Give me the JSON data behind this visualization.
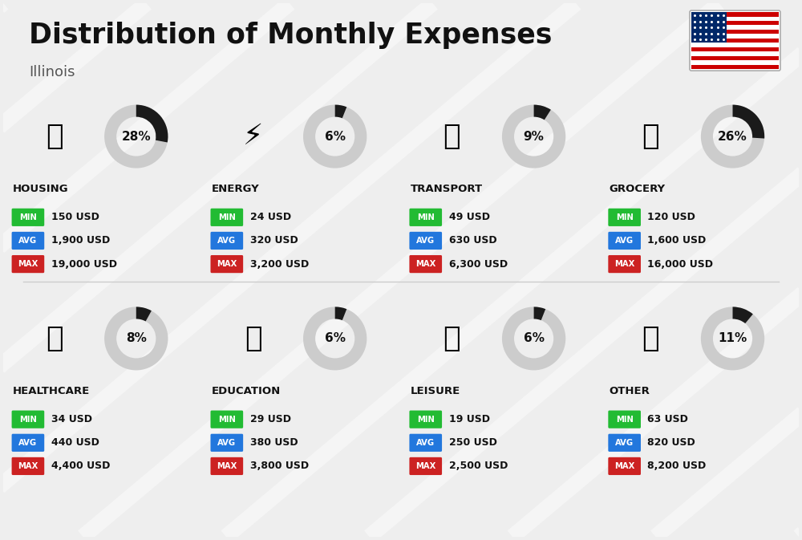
{
  "title": "Distribution of Monthly Expenses",
  "subtitle": "Illinois",
  "background_color": "#eeeeee",
  "categories": [
    {
      "name": "HOUSING",
      "percent": 28,
      "min_val": "150 USD",
      "avg_val": "1,900 USD",
      "max_val": "19,000 USD",
      "row": 0,
      "col": 0
    },
    {
      "name": "ENERGY",
      "percent": 6,
      "min_val": "24 USD",
      "avg_val": "320 USD",
      "max_val": "3,200 USD",
      "row": 0,
      "col": 1
    },
    {
      "name": "TRANSPORT",
      "percent": 9,
      "min_val": "49 USD",
      "avg_val": "630 USD",
      "max_val": "6,300 USD",
      "row": 0,
      "col": 2
    },
    {
      "name": "GROCERY",
      "percent": 26,
      "min_val": "120 USD",
      "avg_val": "1,600 USD",
      "max_val": "16,000 USD",
      "row": 0,
      "col": 3
    },
    {
      "name": "HEALTHCARE",
      "percent": 8,
      "min_val": "34 USD",
      "avg_val": "440 USD",
      "max_val": "4,400 USD",
      "row": 1,
      "col": 0
    },
    {
      "name": "EDUCATION",
      "percent": 6,
      "min_val": "29 USD",
      "avg_val": "380 USD",
      "max_val": "3,800 USD",
      "row": 1,
      "col": 1
    },
    {
      "name": "LEISURE",
      "percent": 6,
      "min_val": "19 USD",
      "avg_val": "250 USD",
      "max_val": "2,500 USD",
      "row": 1,
      "col": 2
    },
    {
      "name": "OTHER",
      "percent": 11,
      "min_val": "63 USD",
      "avg_val": "820 USD",
      "max_val": "8,200 USD",
      "row": 1,
      "col": 3
    }
  ],
  "min_color": "#22bb33",
  "avg_color": "#2277dd",
  "max_color": "#cc2222",
  "label_text_color": "#ffffff",
  "value_text_color": "#111111",
  "ring_filled_color": "#1a1a1a",
  "ring_empty_color": "#cccccc",
  "category_name_color": "#111111",
  "title_color": "#111111",
  "subtitle_color": "#555555",
  "stripe_color": "#ffffff",
  "separator_color": "#cccccc"
}
